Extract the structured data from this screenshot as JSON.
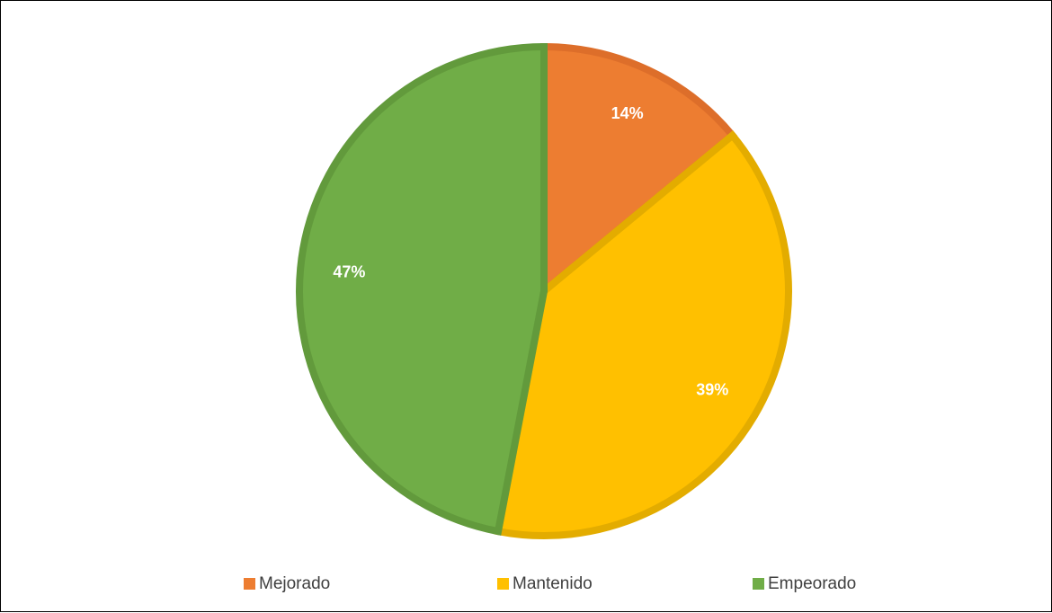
{
  "chart_data": {
    "type": "pie",
    "title": "",
    "categories": [
      "Mejorado",
      "Mantenido",
      "Empeorado"
    ],
    "values": [
      14,
      39,
      47
    ],
    "labels": [
      "14%",
      "39%",
      "47%"
    ],
    "colors": [
      "#ED7D31",
      "#FFC000",
      "#70AD47"
    ],
    "border_colors": [
      "#DD6E2A",
      "#E3AC00",
      "#629A3C"
    ],
    "legend": {
      "position": "bottom",
      "entries": [
        "Mejorado",
        "Mantenido",
        "Empeorado"
      ]
    }
  }
}
